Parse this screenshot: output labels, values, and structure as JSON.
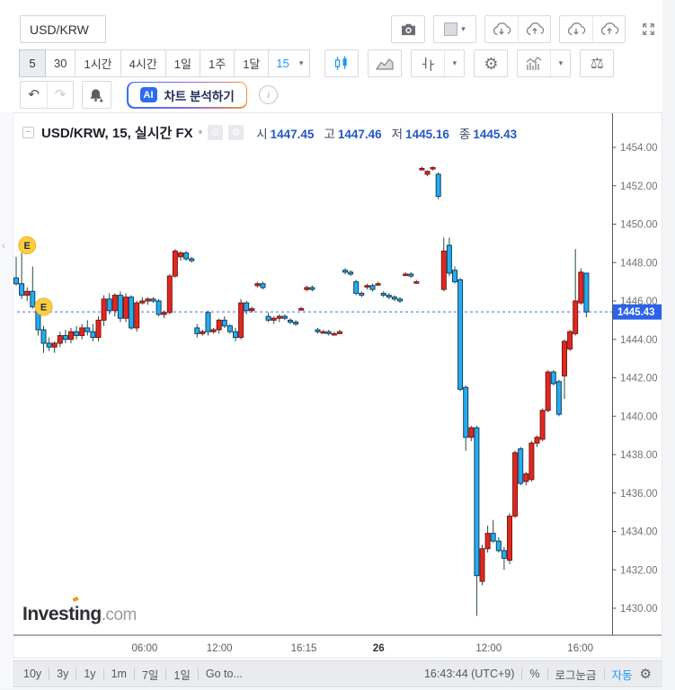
{
  "icons": {
    "caret": "▾",
    "gear": "⚙",
    "scales": "⚖",
    "undo": "↶",
    "redo": "↷",
    "eye": "⊙",
    "minimize": "−",
    "info": "i",
    "collapse": "‹"
  },
  "toolbar": {
    "symbol_input": "USD/KRW",
    "timeframes": [
      "5",
      "30",
      "1시간",
      "4시간",
      "1일",
      "1주",
      "1달"
    ],
    "selected_timeframe": "5",
    "interval_dropdown": "15",
    "ai_badge": "AI",
    "ai_button": "차트 분석하기"
  },
  "chart_header": {
    "title": "USD/KRW, 15, 실시간 FX",
    "ohlc": [
      {
        "label": "시",
        "value": "1447.45"
      },
      {
        "label": "고",
        "value": "1447.46"
      },
      {
        "label": "저",
        "value": "1445.16"
      },
      {
        "label": "종",
        "value": "1445.43"
      }
    ]
  },
  "watermark": {
    "brand": "Investing",
    "suffix": ".com"
  },
  "chart_data": {
    "type": "candlestick",
    "symbol": "USD/KRW",
    "interval": "15",
    "last_price": 1445.43,
    "last_price_label": "1445.43",
    "price_axis": {
      "min": 1430,
      "max": 1454,
      "tick_labels": [
        "1454.00",
        "1452.00",
        "1450.00",
        "1448.00",
        "1446.00",
        "1444.00",
        "1442.00",
        "1440.00",
        "1438.00",
        "1436.00",
        "1434.00",
        "1432.00",
        "1430.00"
      ]
    },
    "time_axis": [
      {
        "label": "06:00",
        "pos": 0.219,
        "bold": false
      },
      {
        "label": "12:00",
        "pos": 0.344,
        "bold": false
      },
      {
        "label": "16:15",
        "pos": 0.485,
        "bold": false
      },
      {
        "label": "26",
        "pos": 0.61,
        "bold": true
      },
      {
        "label": "12:00",
        "pos": 0.794,
        "bold": false
      },
      {
        "label": "16:00",
        "pos": 0.947,
        "bold": false
      }
    ],
    "events": [
      {
        "label": "E",
        "index": 2,
        "price": 1448.9
      },
      {
        "label": "E",
        "index": 5,
        "price": 1445.7
      }
    ],
    "colors": {
      "up": "#e02822",
      "up_border": "#7f1512",
      "down": "#22aef0",
      "down_border": "#173e62",
      "wick": "#20503f",
      "price_line": "#3d6ce0",
      "price_badge": "#2b62e8"
    },
    "candles": [
      [
        1447.2,
        1448.3,
        1446.8,
        1446.9
      ],
      [
        1446.9,
        1448.5,
        1446.1,
        1446.3
      ],
      [
        1446.3,
        1446.7,
        1446.0,
        1446.5
      ],
      [
        1446.5,
        1447.8,
        1445.6,
        1445.7
      ],
      [
        1445.7,
        1445.9,
        1444.2,
        1444.5
      ],
      [
        1444.5,
        1444.7,
        1443.3,
        1443.8
      ],
      [
        1443.8,
        1444.1,
        1443.4,
        1443.6
      ],
      [
        1443.6,
        1443.9,
        1443.3,
        1443.8
      ],
      [
        1443.8,
        1444.4,
        1443.6,
        1444.2
      ],
      [
        1444.2,
        1444.5,
        1443.8,
        1444.0
      ],
      [
        1444.0,
        1444.6,
        1443.8,
        1444.4
      ],
      [
        1444.4,
        1444.7,
        1444.0,
        1444.2
      ],
      [
        1444.2,
        1444.8,
        1444.0,
        1444.6
      ],
      [
        1444.6,
        1445.0,
        1444.2,
        1444.4
      ],
      [
        1444.4,
        1444.8,
        1443.9,
        1444.1
      ],
      [
        1444.1,
        1445.2,
        1443.9,
        1445.0
      ],
      [
        1445.0,
        1446.3,
        1444.7,
        1446.1
      ],
      [
        1446.1,
        1446.4,
        1445.3,
        1445.5
      ],
      [
        1445.5,
        1446.4,
        1445.2,
        1446.3
      ],
      [
        1446.3,
        1446.5,
        1444.9,
        1445.1
      ],
      [
        1445.1,
        1446.4,
        1444.9,
        1446.2
      ],
      [
        1446.2,
        1446.3,
        1444.5,
        1444.6
      ],
      [
        1444.6,
        1446.0,
        1444.4,
        1445.9
      ],
      [
        1445.9,
        1446.2,
        1445.8,
        1446.0
      ],
      [
        1446.0,
        1446.2,
        1445.8,
        1446.1
      ],
      [
        1446.1,
        1446.2,
        1445.9,
        1446.0
      ],
      [
        1446.0,
        1446.1,
        1445.2,
        1445.3
      ],
      [
        1445.3,
        1445.5,
        1445.1,
        1445.4
      ],
      [
        1445.4,
        1447.4,
        1445.3,
        1447.3
      ],
      [
        1447.3,
        1448.7,
        1447.2,
        1448.6
      ],
      [
        1448.3,
        1448.6,
        1448.1,
        1448.5
      ],
      [
        1448.5,
        1448.6,
        1448.1,
        1448.2
      ],
      [
        1448.2,
        1448.3,
        1448.0,
        1448.1
      ],
      [
        1444.6,
        1444.8,
        1444.1,
        1444.3
      ],
      [
        1444.3,
        1444.5,
        1444.2,
        1444.4
      ],
      [
        1445.4,
        1445.5,
        1444.2,
        1444.4
      ],
      [
        1444.4,
        1444.6,
        1444.3,
        1444.5
      ],
      [
        1444.5,
        1445.1,
        1444.3,
        1445.0
      ],
      [
        1445.0,
        1445.2,
        1444.6,
        1444.7
      ],
      [
        1444.7,
        1444.8,
        1444.3,
        1444.4
      ],
      [
        1444.4,
        1444.6,
        1443.9,
        1444.1
      ],
      [
        1444.1,
        1446.1,
        1444.0,
        1445.9
      ],
      [
        1445.9,
        1446.0,
        1445.3,
        1445.5
      ],
      [
        1445.5,
        1445.7,
        1445.4,
        1445.6
      ],
      [
        1446.8,
        1447.0,
        1446.7,
        1446.9
      ],
      [
        1446.9,
        1447.0,
        1446.6,
        1446.7
      ],
      [
        1445.2,
        1445.4,
        1444.9,
        1445.0
      ],
      [
        1445.0,
        1445.2,
        1444.8,
        1445.1
      ],
      [
        1445.1,
        1445.3,
        1444.9,
        1445.2
      ],
      [
        1445.2,
        1445.3,
        1445.0,
        1445.1
      ],
      [
        1445.0,
        1445.1,
        1444.8,
        1444.9
      ],
      [
        1444.9,
        1445.0,
        1444.7,
        1444.8
      ],
      [
        1445.6,
        1445.7,
        1445.5,
        1445.6
      ],
      [
        1446.6,
        1446.8,
        1446.5,
        1446.7
      ],
      [
        1446.7,
        1446.8,
        1446.5,
        1446.6
      ],
      [
        1444.5,
        1444.6,
        1444.3,
        1444.4
      ],
      [
        1444.4,
        1444.5,
        1444.3,
        1444.4
      ],
      [
        1444.4,
        1444.5,
        1444.2,
        1444.3
      ],
      [
        1444.3,
        1444.4,
        1444.2,
        1444.3
      ],
      [
        1444.3,
        1444.5,
        1444.3,
        1444.4
      ],
      [
        1447.6,
        1447.7,
        1447.4,
        1447.5
      ],
      [
        1447.5,
        1447.6,
        1447.3,
        1447.4
      ],
      [
        1447.0,
        1447.1,
        1446.3,
        1446.4
      ],
      [
        1446.4,
        1446.5,
        1446.2,
        1446.3
      ],
      [
        1446.8,
        1446.9,
        1446.6,
        1446.8
      ],
      [
        1446.8,
        1446.9,
        1446.5,
        1446.6
      ],
      [
        1446.9,
        1447.0,
        1446.8,
        1446.9
      ],
      [
        1446.4,
        1446.5,
        1446.2,
        1446.3
      ],
      [
        1446.3,
        1446.4,
        1446.1,
        1446.2
      ],
      [
        1446.2,
        1446.3,
        1446.0,
        1446.1
      ],
      [
        1446.1,
        1446.2,
        1445.9,
        1446.0
      ],
      [
        1447.4,
        1447.5,
        1447.3,
        1447.4
      ],
      [
        1447.4,
        1447.5,
        1447.2,
        1447.3
      ],
      [
        1447.0,
        1447.1,
        1446.9,
        1447.0
      ],
      [
        1452.9,
        1453.0,
        1452.8,
        1452.9
      ],
      [
        1452.6,
        1452.8,
        1452.5,
        1452.75
      ],
      [
        1452.9,
        1453.0,
        1452.8,
        1452.95
      ],
      [
        1452.6,
        1452.7,
        1451.3,
        1451.45
      ],
      [
        1446.6,
        1449.3,
        1446.5,
        1448.6
      ],
      [
        1448.9,
        1449.3,
        1447.3,
        1447.45
      ],
      [
        1447.6,
        1447.8,
        1446.9,
        1447.0
      ],
      [
        1447.1,
        1447.2,
        1441.3,
        1441.4
      ],
      [
        1441.5,
        1441.6,
        1438.2,
        1438.9
      ],
      [
        1438.9,
        1439.5,
        1438.7,
        1439.4
      ],
      [
        1439.4,
        1439.5,
        1429.6,
        1431.7
      ],
      [
        1431.4,
        1433.3,
        1431.2,
        1433.1
      ],
      [
        1433.1,
        1434.3,
        1432.9,
        1433.9
      ],
      [
        1433.9,
        1434.6,
        1433.4,
        1433.5
      ],
      [
        1433.5,
        1433.7,
        1432.9,
        1433.0
      ],
      [
        1433.0,
        1433.2,
        1432.0,
        1432.6
      ],
      [
        1432.5,
        1434.95,
        1432.3,
        1434.8
      ],
      [
        1434.8,
        1438.2,
        1434.7,
        1438.1
      ],
      [
        1438.3,
        1438.4,
        1436.4,
        1436.5
      ],
      [
        1436.6,
        1437.1,
        1436.4,
        1437.0
      ],
      [
        1436.7,
        1438.7,
        1436.6,
        1438.6
      ],
      [
        1438.6,
        1439.0,
        1438.4,
        1438.9
      ],
      [
        1438.8,
        1440.4,
        1438.7,
        1440.3
      ],
      [
        1440.3,
        1442.4,
        1440.2,
        1442.3
      ],
      [
        1442.3,
        1442.4,
        1441.6,
        1441.7
      ],
      [
        1441.8,
        1441.9,
        1440.0,
        1440.1
      ],
      [
        1442.1,
        1444.0,
        1440.9,
        1443.9
      ],
      [
        1443.5,
        1444.5,
        1443.4,
        1444.4
      ],
      [
        1444.3,
        1448.7,
        1444.2,
        1446.0
      ],
      [
        1445.9,
        1447.7,
        1445.8,
        1447.5
      ],
      [
        1447.45,
        1447.46,
        1445.16,
        1445.43
      ]
    ]
  },
  "bottom_bar": {
    "ranges": [
      "10y",
      "3y",
      "1y",
      "1m",
      "7일",
      "1일"
    ],
    "goto": "Go to...",
    "clock": "16:43:44 (UTC+9)",
    "percent": "%",
    "log": "로그눈금",
    "auto": "자동"
  }
}
